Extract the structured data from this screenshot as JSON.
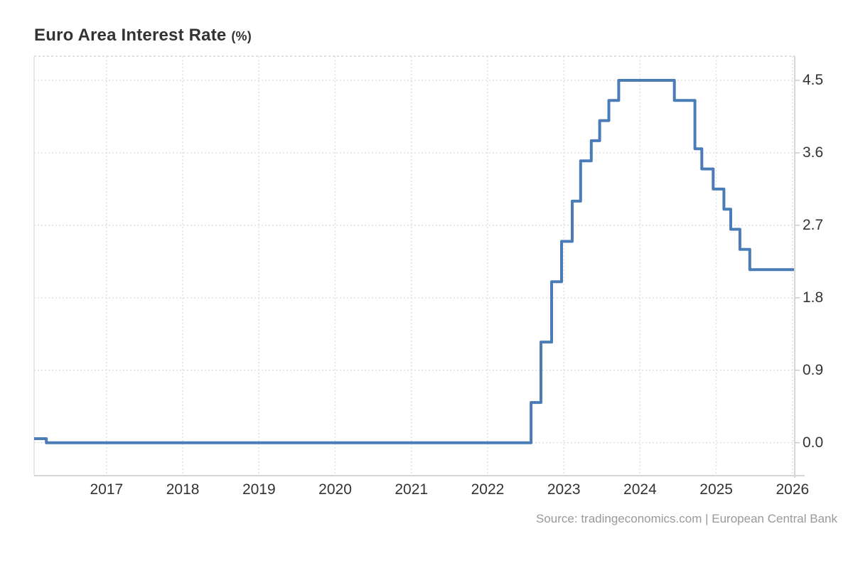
{
  "header": {
    "title": "Euro Area Interest Rate",
    "unit": "(%)"
  },
  "footer": {
    "source": "Source: tradingeconomics.com | European Central Bank"
  },
  "colors": {
    "line": "#4a7cb8",
    "grid": "#dedede",
    "top_border": "#e0e0e0",
    "left_border": "#e2e2e2",
    "axis_line": "#d6d6d6",
    "tick": "#cccccc",
    "label": "#333333",
    "source_text": "#999999",
    "background": "#ffffff"
  },
  "chart_data": {
    "type": "line",
    "subtype": "step-after",
    "title": "Euro Area Interest Rate (%)",
    "xlabel": "",
    "ylabel": "",
    "grid": "dotted",
    "legend": false,
    "x_axis": {
      "ticks": [
        2017,
        2018,
        2019,
        2020,
        2021,
        2022,
        2023,
        2024,
        2025,
        2026
      ],
      "range": [
        2016.05,
        2026.02
      ]
    },
    "y_axis": {
      "side": "right",
      "tick_labels": [
        "4.5",
        "3.6",
        "2.7",
        "1.8",
        "0.9",
        "0.0"
      ],
      "tick_values": [
        4.5,
        3.6,
        2.7,
        1.8,
        0.9,
        0.0
      ],
      "range": [
        -0.4,
        4.8
      ]
    },
    "series": [
      {
        "name": "Euro Area Interest Rate",
        "color": "#4a7cb8",
        "points": [
          {
            "date": "2016-01",
            "x": 2016.05,
            "y": 0.05
          },
          {
            "date": "2016-03",
            "x": 2016.21,
            "y": 0.0
          },
          {
            "date": "2022-07",
            "x": 2022.57,
            "y": 0.5
          },
          {
            "date": "2022-09",
            "x": 2022.7,
            "y": 1.25
          },
          {
            "date": "2022-11",
            "x": 2022.84,
            "y": 2.0
          },
          {
            "date": "2022-12",
            "x": 2022.97,
            "y": 2.5
          },
          {
            "date": "2023-02",
            "x": 2023.11,
            "y": 3.0
          },
          {
            "date": "2023-03",
            "x": 2023.22,
            "y": 3.5
          },
          {
            "date": "2023-05",
            "x": 2023.36,
            "y": 3.75
          },
          {
            "date": "2023-06",
            "x": 2023.47,
            "y": 4.0
          },
          {
            "date": "2023-08",
            "x": 2023.59,
            "y": 4.25
          },
          {
            "date": "2023-09",
            "x": 2023.72,
            "y": 4.5
          },
          {
            "date": "2024-06",
            "x": 2024.45,
            "y": 4.25
          },
          {
            "date": "2024-09",
            "x": 2024.72,
            "y": 3.65
          },
          {
            "date": "2024-10",
            "x": 2024.81,
            "y": 3.4
          },
          {
            "date": "2024-12",
            "x": 2024.96,
            "y": 3.15
          },
          {
            "date": "2025-02",
            "x": 2025.1,
            "y": 2.9
          },
          {
            "date": "2025-03",
            "x": 2025.19,
            "y": 2.65
          },
          {
            "date": "2025-04",
            "x": 2025.31,
            "y": 2.4
          },
          {
            "date": "2025-06",
            "x": 2025.44,
            "y": 2.15
          },
          {
            "date": "2025-12",
            "x": 2026.02,
            "y": 2.15
          }
        ]
      }
    ]
  }
}
